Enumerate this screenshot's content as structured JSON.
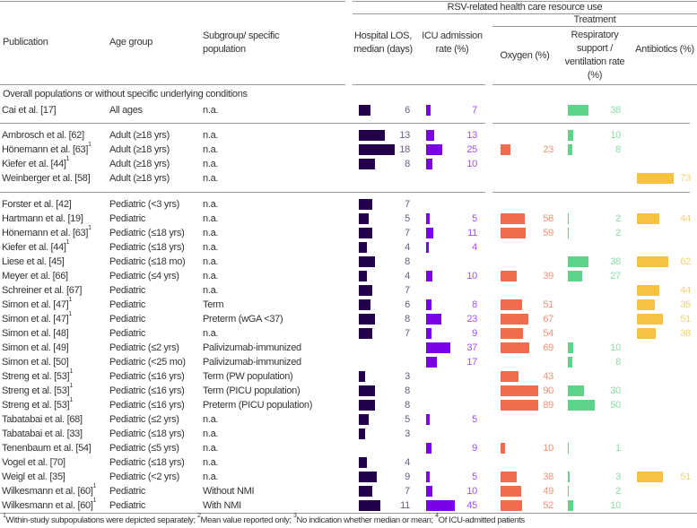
{
  "header": {
    "group_title": "RSV-related health care resource use",
    "treatment_title": "Treatment",
    "col_publication": "Publication",
    "col_age": "Age group",
    "col_subgroup": "Subgroup/ specific population",
    "col_los": "Hospital LOS, median (days)",
    "col_icu": "ICU admission rate (%)",
    "col_oxygen": "Oxygen (%)",
    "col_resp": "Respiratory support / ventilation rate (%)",
    "col_antibiotics": "Antibiotics (%)"
  },
  "section_title": "Overall populations or without specific underlying conditions",
  "colors": {
    "los": "#22004a",
    "los_text": "#6a5a88",
    "icu": "#7a00e8",
    "icu_text": "#a64cff",
    "oxygen": "#ef6c4d",
    "oxygen_text": "#f39277",
    "resp": "#5ed488",
    "resp_text": "#86dfa7",
    "antibiotics": "#f5c242",
    "antibiotics_text": "#f6d175"
  },
  "groups": [
    [
      {
        "pub": "Cai et al. [17]",
        "sup": "",
        "age": "All ages",
        "sub": "n.a.",
        "los": 6,
        "icu": 7,
        "oxygen": null,
        "resp": 38,
        "antibiotics": null
      }
    ],
    [
      {
        "pub": "Ambrosch et al. [62]",
        "sup": "",
        "age": "Adult (≥18 yrs)",
        "sub": "n.a.",
        "los": 13,
        "icu": 13,
        "oxygen": null,
        "resp": 10,
        "antibiotics": null
      },
      {
        "pub": "Hönemann et al. [63]",
        "sup": "1",
        "age": "Adult (≥18 yrs)",
        "sub": "n.a.",
        "los": 18,
        "icu": 25,
        "oxygen": 23,
        "resp": 8,
        "antibiotics": null
      },
      {
        "pub": "Kiefer et al. [44]",
        "sup": "1",
        "age": "Adult (≥18 yrs)",
        "sub": "n.a.",
        "los": 8,
        "icu": 10,
        "oxygen": null,
        "resp": null,
        "antibiotics": null
      },
      {
        "pub": "Weinberger et al. [58]",
        "sup": "",
        "age": "Adult (≥18 yrs)",
        "sub": "n.a.",
        "los": null,
        "icu": null,
        "oxygen": null,
        "resp": null,
        "antibiotics": 73
      }
    ],
    [
      {
        "pub": "Forster et al. [42]",
        "sup": "",
        "age": "Pediatric (<3 yrs)",
        "sub": "n.a.",
        "los": 7,
        "icu": null,
        "oxygen": null,
        "resp": null,
        "antibiotics": null
      },
      {
        "pub": "Hartmann et al. [19]",
        "sup": "",
        "age": "Pediatric",
        "sub": "n.a.",
        "los": 5,
        "icu": 5,
        "oxygen": 58,
        "resp": 2,
        "antibiotics": 44
      },
      {
        "pub": "Hönemann et al. [63]",
        "sup": "1",
        "age": "Pediatric (≤18 yrs)",
        "sub": "n.a.",
        "los": 7,
        "icu": 11,
        "oxygen": 59,
        "resp": 2,
        "antibiotics": null
      },
      {
        "pub": "Kiefer et al. [44]",
        "sup": "1",
        "age": "Pediatric (≤18 yrs)",
        "sub": "n.a.",
        "los": 4,
        "icu": 4,
        "oxygen": null,
        "resp": null,
        "antibiotics": null
      },
      {
        "pub": "Liese et al. [45]",
        "sup": "",
        "age": "Pediatric (≤18 mo)",
        "sub": "n.a.",
        "los": 8,
        "icu": null,
        "oxygen": null,
        "resp": 38,
        "antibiotics": 62
      },
      {
        "pub": "Meyer et al. [66]",
        "sup": "",
        "age": "Pediatric (≤4 yrs)",
        "sub": "n.a.",
        "los": 4,
        "icu": 10,
        "oxygen": 39,
        "resp": 27,
        "antibiotics": null
      },
      {
        "pub": "Schreiner et al. [67]",
        "sup": "",
        "age": "Pediatric",
        "sub": "n.a.",
        "los": 7,
        "icu": null,
        "oxygen": null,
        "resp": null,
        "antibiotics": 44
      },
      {
        "pub": "Simon et al. [47]",
        "sup": "1",
        "age": "Pediatric",
        "sub": "Term",
        "los": 6,
        "icu": 8,
        "oxygen": 51,
        "resp": null,
        "antibiotics": 35
      },
      {
        "pub": "Simon et al. [47]",
        "sup": "1",
        "age": "Pediatric",
        "sub": "Preterm (wGA <37)",
        "los": 8,
        "icu": 23,
        "oxygen": 67,
        "resp": null,
        "antibiotics": 51
      },
      {
        "pub": "Simon et al. [48]",
        "sup": "",
        "age": "Pediatric",
        "sub": "n.a.",
        "los": 7,
        "icu": 9,
        "oxygen": 54,
        "resp": null,
        "antibiotics": 38
      },
      {
        "pub": "Simon et al. [49]",
        "sup": "",
        "age": "Pediatric (≤2 yrs)",
        "sub": "Palivizumab-immunized",
        "los": null,
        "icu": 37,
        "oxygen": 69,
        "resp": 10,
        "antibiotics": null
      },
      {
        "pub": "Simon et al. [50]",
        "sup": "",
        "age": "Pediatric (<25 mo)",
        "sub": "Palivizumab-immunized",
        "los": null,
        "icu": 17,
        "oxygen": null,
        "resp": 8,
        "antibiotics": null
      },
      {
        "pub": "Streng et al. [53]",
        "sup": "1",
        "age": "Pediatric (≤16 yrs)",
        "sub": "Term (PW population)",
        "los": 3,
        "icu": null,
        "oxygen": 43,
        "resp": null,
        "antibiotics": null
      },
      {
        "pub": "Streng et al. [53]",
        "sup": "1",
        "age": "Pediatric (≤16 yrs)",
        "sub": "Term (PICU population)",
        "los": 8,
        "icu": null,
        "oxygen": 90,
        "resp": 30,
        "antibiotics": null
      },
      {
        "pub": "Streng et al. [53]",
        "sup": "1",
        "age": "Pediatric (≤16 yrs)",
        "sub": "Preterm (PICU population)",
        "los": 8,
        "icu": null,
        "oxygen": 89,
        "resp": 50,
        "antibiotics": null
      },
      {
        "pub": "Tabatabai et al. [68]",
        "sup": "",
        "age": "Pediatric (≤2 yrs)",
        "sub": "n.a.",
        "los": 5,
        "icu": 5,
        "oxygen": null,
        "resp": null,
        "antibiotics": null
      },
      {
        "pub": "Tabatabai et al. [33]",
        "sup": "",
        "age": "Pediatric (≤18 yrs)",
        "sub": "n.a.",
        "los": 3,
        "icu": null,
        "oxygen": null,
        "resp": null,
        "antibiotics": null
      },
      {
        "pub": "Tenenbaum et al. [54]",
        "sup": "",
        "age": "Pediatric (≤5 yrs)",
        "sub": "n.a.",
        "los": null,
        "icu": 9,
        "oxygen": 10,
        "resp": 1,
        "antibiotics": null
      },
      {
        "pub": "Vogel et al. [70]",
        "sup": "",
        "age": "Pediatric (≤18 yrs)",
        "sub": "n.a.",
        "los": 4,
        "icu": null,
        "oxygen": null,
        "resp": null,
        "antibiotics": null
      },
      {
        "pub": "Weigl et al. [35]",
        "sup": "",
        "age": "Pediatric (<2 yrs)",
        "sub": "n.a.",
        "los": 9,
        "icu": 5,
        "oxygen": 38,
        "resp": 3,
        "antibiotics": 51
      },
      {
        "pub": "Wilkesmann et al. [60]",
        "sup": "1",
        "age": "Pediatric",
        "sub": "Without NMI",
        "los": 7,
        "icu": 10,
        "oxygen": 49,
        "resp": 2,
        "antibiotics": null
      },
      {
        "pub": "Wilkesmann et al. [60]",
        "sup": "1",
        "age": "Pediatric",
        "sub": "With NMI",
        "los": 11,
        "icu": 45,
        "oxygen": 52,
        "resp": 10,
        "antibiotics": null
      }
    ]
  ],
  "footnotes": [
    {
      "sup": "1",
      "text": "Within-study subpopulations were depicted separately; "
    },
    {
      "sup": "2",
      "text": "Mean value reported only; "
    },
    {
      "sup": "3",
      "text": "No indication whether median or mean; "
    },
    {
      "sup": "4",
      "text": "Of ICU-admitted patients"
    }
  ]
}
